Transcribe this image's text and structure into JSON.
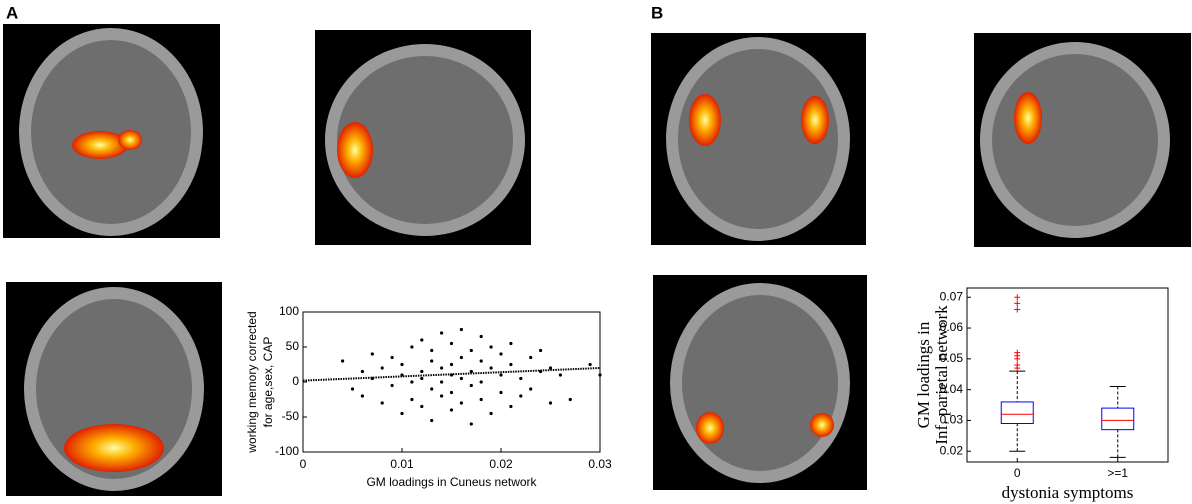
{
  "panel_labels": [
    "A",
    "B"
  ],
  "chart_data": [
    {
      "type": "scatter",
      "xlabel": "GM loadings in Cuneus network",
      "ylabel": [
        "working memory corrected",
        "for age,sex, CAP"
      ],
      "xlim": [
        0,
        0.03
      ],
      "xticks": [
        0,
        0.01,
        0.02,
        0.03
      ],
      "ylim": [
        -100,
        100
      ],
      "yticks": [
        -100,
        -50,
        0,
        50,
        100
      ],
      "color": "#000000",
      "x": [
        0.004,
        0.005,
        0.006,
        0.006,
        0.007,
        0.007,
        0.008,
        0.008,
        0.009,
        0.009,
        0.01,
        0.01,
        0.01,
        0.011,
        0.011,
        0.011,
        0.012,
        0.012,
        0.012,
        0.012,
        0.013,
        0.013,
        0.013,
        0.013,
        0.014,
        0.014,
        0.014,
        0.014,
        0.015,
        0.015,
        0.015,
        0.015,
        0.015,
        0.016,
        0.016,
        0.016,
        0.016,
        0.017,
        0.017,
        0.017,
        0.017,
        0.018,
        0.018,
        0.018,
        0.018,
        0.019,
        0.019,
        0.019,
        0.02,
        0.02,
        0.02,
        0.021,
        0.021,
        0.021,
        0.022,
        0.022,
        0.023,
        0.023,
        0.024,
        0.024,
        0.025,
        0.025,
        0.026,
        0.027,
        0.029,
        0.03
      ],
      "values": [
        30,
        -10,
        15,
        -20,
        40,
        5,
        -30,
        20,
        -5,
        35,
        10,
        -45,
        25,
        0,
        50,
        -25,
        15,
        -35,
        60,
        5,
        -10,
        30,
        45,
        -55,
        20,
        -20,
        70,
        0,
        10,
        -40,
        55,
        25,
        -15,
        5,
        75,
        -30,
        35,
        -60,
        15,
        45,
        -5,
        -25,
        30,
        65,
        0,
        20,
        -45,
        50,
        10,
        -15,
        40,
        25,
        -35,
        55,
        5,
        -20,
        35,
        -10,
        45,
        15,
        -30,
        20,
        10,
        -25,
        25,
        10
      ],
      "fit": {
        "x": [
          0,
          0.03
        ],
        "values": [
          2,
          20
        ]
      }
    },
    {
      "type": "box",
      "xlabel": "dystonia symptoms",
      "ylabel": [
        "GM loadings in",
        "Inf. parietal network"
      ],
      "categories": [
        "0",
        ">=1"
      ],
      "ylim": [
        0.0165,
        0.073
      ],
      "yticks": [
        0.02,
        0.03,
        0.04,
        0.05,
        0.06,
        0.07
      ],
      "box_color": "#0000ff",
      "median_color": "#ff0000",
      "flier_color": "#ff0000",
      "boxes": [
        {
          "whislo": 0.02,
          "q1": 0.029,
          "med": 0.032,
          "q3": 0.036,
          "whishi": 0.046,
          "fliers": [
            0.047,
            0.048,
            0.05,
            0.051,
            0.052,
            0.066,
            0.068,
            0.07
          ]
        },
        {
          "whislo": 0.018,
          "q1": 0.027,
          "med": 0.03,
          "q3": 0.034,
          "whishi": 0.041,
          "fliers": []
        }
      ]
    }
  ]
}
